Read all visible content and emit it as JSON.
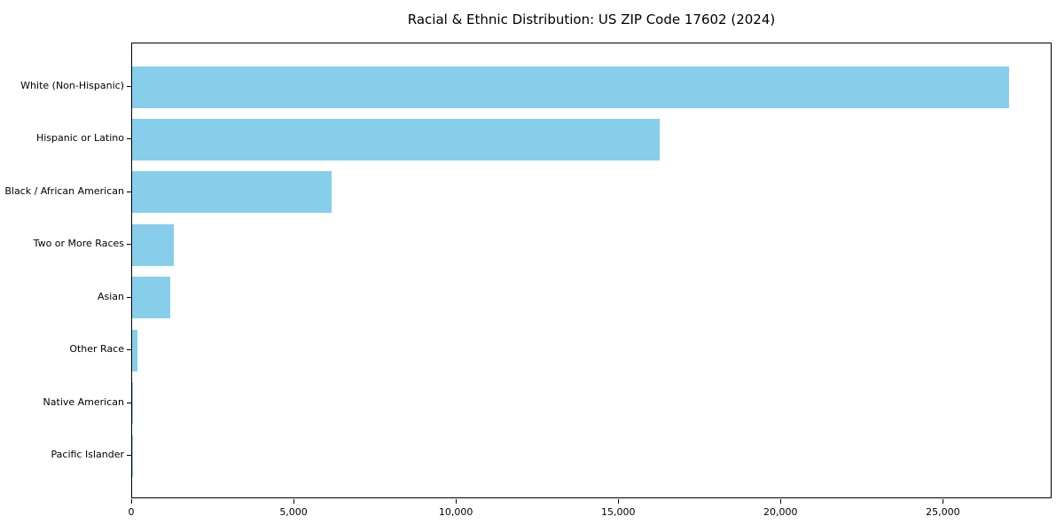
{
  "chart_data": {
    "type": "bar",
    "orientation": "horizontal",
    "title": "Racial & Ethnic Distribution: US ZIP Code 17602 (2024)",
    "categories": [
      "White (Non-Hispanic)",
      "Hispanic or Latino",
      "Black / African American",
      "Two or More Races",
      "Asian",
      "Other Race",
      "Native American",
      "Pacific Islander"
    ],
    "values": [
      27000,
      16260,
      6150,
      1290,
      1180,
      160,
      40,
      15
    ],
    "bar_color": "#87CEEB",
    "xlabel": "",
    "ylabel": "",
    "xlim": [
      0,
      28350
    ],
    "xticks": [
      0,
      5000,
      10000,
      15000,
      20000,
      25000
    ],
    "xtick_labels": [
      "0",
      "5,000",
      "10,000",
      "15,000",
      "20,000",
      "25,000"
    ],
    "grid": false,
    "legend": null,
    "background_color": "#ffffff",
    "spine_color": "#000000"
  }
}
